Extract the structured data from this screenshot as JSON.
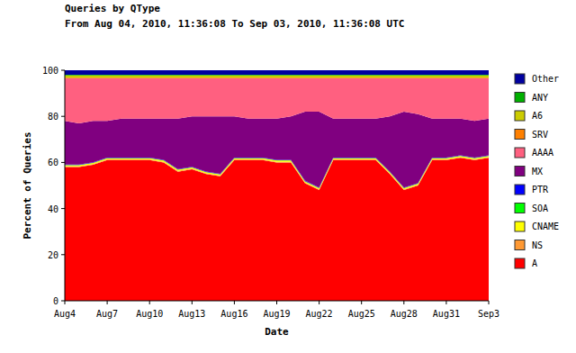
{
  "chart_data": {
    "type": "area",
    "title": "Queries by QType",
    "subtitle": "From Aug 04, 2010, 11:36:08 To Sep 03, 2010, 11:36:08 UTC",
    "x_label": "Date",
    "y_label": "Percent of Queries",
    "stacked": true,
    "grid": false,
    "legend": "right",
    "ylim": [
      0,
      100
    ],
    "yticks": [
      0,
      20,
      40,
      60,
      80,
      100
    ],
    "categories": [
      "Aug4",
      null,
      null,
      "Aug7",
      null,
      null,
      "Aug10",
      null,
      null,
      "Aug13",
      null,
      null,
      "Aug16",
      null,
      null,
      "Aug19",
      null,
      null,
      "Aug22",
      null,
      null,
      "Aug25",
      null,
      null,
      "Aug28",
      null,
      null,
      "Aug31",
      null,
      null,
      "Sep3"
    ],
    "series": [
      {
        "name": "A",
        "color": "#ff0000",
        "values": [
          58,
          58,
          59,
          61,
          61,
          61,
          61,
          60,
          56,
          57,
          55,
          54,
          61,
          61,
          61,
          60,
          60,
          51,
          48,
          61,
          61,
          61,
          61,
          55,
          48,
          50,
          61,
          61,
          62,
          61,
          62
        ]
      },
      {
        "name": "NS",
        "color": "#ff9933",
        "values": [
          0.3,
          0.3,
          0.3,
          0.3,
          0.3,
          0.3,
          0.3,
          0.3,
          0.3,
          0.3,
          0.3,
          0.3,
          0.3,
          0.3,
          0.3,
          0.3,
          0.3,
          0.3,
          0.3,
          0.3,
          0.3,
          0.3,
          0.3,
          0.3,
          0.3,
          0.3,
          0.3,
          0.3,
          0.3,
          0.3,
          0.3
        ]
      },
      {
        "name": "CNAME",
        "color": "#ffff00",
        "values": [
          0.5,
          0.5,
          0.5,
          0.5,
          0.5,
          0.5,
          0.5,
          0.5,
          0.5,
          0.5,
          0.5,
          0.5,
          0.5,
          0.5,
          0.5,
          0.5,
          0.5,
          0.5,
          0.5,
          0.5,
          0.5,
          0.5,
          0.5,
          0.5,
          0.5,
          0.5,
          0.5,
          0.5,
          0.5,
          0.5,
          0.5
        ]
      },
      {
        "name": "SOA",
        "color": "#00ff00",
        "values": [
          0.1,
          0.1,
          0.1,
          0.1,
          0.1,
          0.1,
          0.1,
          0.1,
          0.1,
          0.1,
          0.1,
          0.1,
          0.1,
          0.1,
          0.1,
          0.1,
          0.1,
          0.1,
          0.1,
          0.1,
          0.1,
          0.1,
          0.1,
          0.1,
          0.1,
          0.1,
          0.1,
          0.1,
          0.1,
          0.1,
          0.1
        ]
      },
      {
        "name": "PTR",
        "color": "#0000ff",
        "values": [
          0.2,
          0.2,
          0.2,
          0.2,
          0.2,
          0.2,
          0.2,
          0.2,
          0.2,
          0.2,
          0.2,
          0.2,
          0.2,
          0.2,
          0.2,
          0.2,
          0.2,
          0.2,
          0.2,
          0.2,
          0.2,
          0.2,
          0.2,
          0.2,
          0.2,
          0.2,
          0.2,
          0.2,
          0.2,
          0.2,
          0.2
        ]
      },
      {
        "name": "MX",
        "color": "#800080",
        "values": [
          18.9,
          17.9,
          17.9,
          15.9,
          16.9,
          16.9,
          16.9,
          17.9,
          21.9,
          21.9,
          23.9,
          24.9,
          17.9,
          16.9,
          16.9,
          17.9,
          18.9,
          29.9,
          32.9,
          16.9,
          16.9,
          16.9,
          16.9,
          23.9,
          32.9,
          29.9,
          16.9,
          16.9,
          15.9,
          15.9,
          15.9
        ]
      },
      {
        "name": "AAAA",
        "color": "#ff6080",
        "values": [
          18.5,
          19.5,
          18.5,
          18.5,
          17.5,
          17.5,
          17.5,
          17.5,
          17.5,
          16.5,
          16.5,
          16.5,
          16.5,
          17.5,
          17.5,
          17.5,
          16.5,
          14.5,
          14.5,
          17.5,
          17.5,
          17.5,
          17.5,
          16.5,
          14.5,
          15.5,
          17.5,
          17.5,
          17.5,
          18.5,
          17.5
        ]
      },
      {
        "name": "SRV",
        "color": "#ff8000",
        "values": [
          0.3,
          0.3,
          0.3,
          0.3,
          0.3,
          0.3,
          0.3,
          0.3,
          0.3,
          0.3,
          0.3,
          0.3,
          0.3,
          0.3,
          0.3,
          0.3,
          0.3,
          0.3,
          0.3,
          0.3,
          0.3,
          0.3,
          0.3,
          0.3,
          0.3,
          0.3,
          0.3,
          0.3,
          0.3,
          0.3,
          0.3
        ]
      },
      {
        "name": "A6",
        "color": "#cccc00",
        "values": [
          1,
          1,
          1,
          1,
          1,
          1,
          1,
          1,
          1,
          1,
          1,
          1,
          1,
          1,
          1,
          1,
          1,
          1,
          1,
          1,
          1,
          1,
          1,
          1,
          1,
          1,
          1,
          1,
          1,
          1,
          1
        ]
      },
      {
        "name": "ANY",
        "color": "#00b000",
        "values": [
          0.2,
          0.2,
          0.2,
          0.2,
          0.2,
          0.2,
          0.2,
          0.2,
          0.2,
          0.2,
          0.2,
          0.2,
          0.2,
          0.2,
          0.2,
          0.2,
          0.2,
          0.2,
          0.2,
          0.2,
          0.2,
          0.2,
          0.2,
          0.2,
          0.2,
          0.2,
          0.2,
          0.2,
          0.2,
          0.2,
          0.2
        ]
      },
      {
        "name": "Other",
        "color": "#0000a0",
        "values": [
          2,
          2,
          2,
          2,
          2,
          2,
          2,
          2,
          2,
          2,
          2,
          2,
          2,
          2,
          2,
          2,
          2,
          2,
          2,
          2,
          2,
          2,
          2,
          2,
          2,
          2,
          2,
          2,
          2,
          2,
          2
        ]
      }
    ]
  }
}
